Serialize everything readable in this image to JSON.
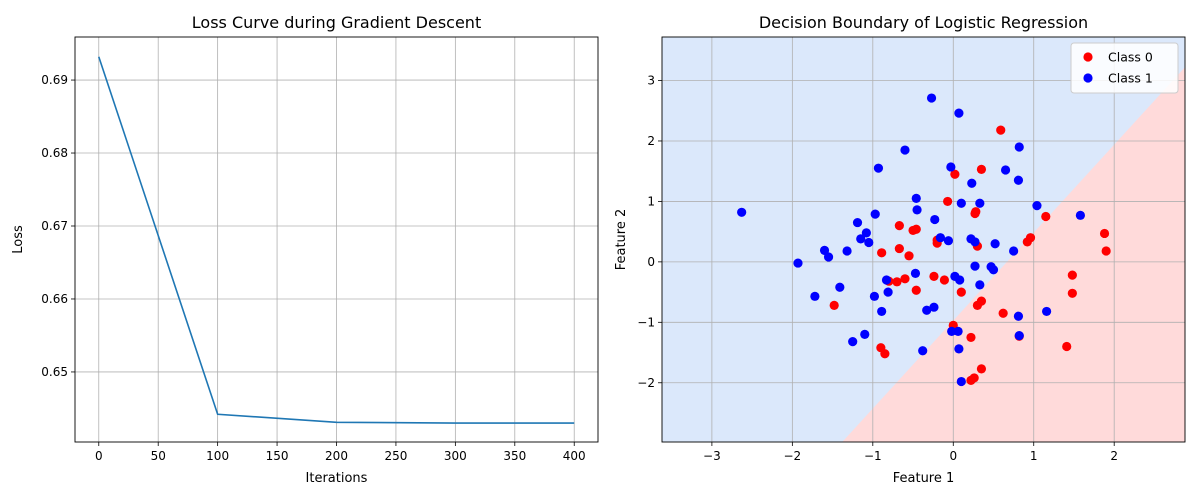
{
  "chart_data": [
    {
      "type": "line",
      "title": "Loss Curve during Gradient Descent",
      "xlabel": "Iterations",
      "ylabel": "Loss",
      "xlim": [
        -20,
        420
      ],
      "ylim": [
        0.6404,
        0.6959
      ],
      "xticks": [
        0,
        50,
        100,
        150,
        200,
        250,
        300,
        350,
        400
      ],
      "yticks": [
        0.65,
        0.66,
        0.67,
        0.68,
        0.69
      ],
      "grid": true,
      "color": "#1f77b4",
      "x": [
        0,
        100,
        200,
        300,
        400
      ],
      "y": [
        0.6932,
        0.6442,
        0.6431,
        0.643,
        0.643
      ]
    },
    {
      "type": "scatter",
      "title": "Decision Boundary of Logistic Regression",
      "xlabel": "Feature 1",
      "ylabel": "Feature 2",
      "xlim": [
        -3.62,
        2.88
      ],
      "ylim": [
        -2.98,
        3.72
      ],
      "xticks": [
        -3,
        -2,
        -1,
        0,
        1,
        2
      ],
      "yticks": [
        -2,
        -1,
        0,
        1,
        2,
        3
      ],
      "grid": true,
      "legend_position": "top-right",
      "boundary": {
        "points": [
          [
            -1.38,
            -2.98
          ],
          [
            2.88,
            3.22
          ]
        ],
        "region_class0_color": "#ffdada",
        "region_class1_color": "#dbe8fb"
      },
      "series": [
        {
          "name": "Class 0",
          "color": "#ff0000",
          "points": [
            [
              0.59,
              2.18
            ],
            [
              0.35,
              1.53
            ],
            [
              0.02,
              1.45
            ],
            [
              -0.07,
              1.0
            ],
            [
              0.27,
              0.8
            ],
            [
              0.28,
              0.83
            ],
            [
              1.15,
              0.75
            ],
            [
              1.88,
              0.47
            ],
            [
              1.9,
              0.18
            ],
            [
              0.96,
              0.4
            ],
            [
              0.92,
              0.33
            ],
            [
              -0.67,
              0.6
            ],
            [
              -0.5,
              0.52
            ],
            [
              -0.46,
              0.54
            ],
            [
              -0.67,
              0.22
            ],
            [
              -0.55,
              0.1
            ],
            [
              -0.89,
              0.15
            ],
            [
              -0.2,
              0.36
            ],
            [
              -0.2,
              0.31
            ],
            [
              0.3,
              0.26
            ],
            [
              -0.24,
              -0.24
            ],
            [
              -0.11,
              -0.3
            ],
            [
              -0.6,
              -0.28
            ],
            [
              -0.7,
              -0.33
            ],
            [
              -0.8,
              -0.32
            ],
            [
              -0.46,
              -0.47
            ],
            [
              0.1,
              -0.5
            ],
            [
              0.35,
              -0.65
            ],
            [
              0.3,
              -0.72
            ],
            [
              -1.48,
              -0.72
            ],
            [
              1.48,
              -0.22
            ],
            [
              1.48,
              -0.52
            ],
            [
              0.62,
              -0.85
            ],
            [
              0.82,
              -1.23
            ],
            [
              0.0,
              -1.05
            ],
            [
              0.22,
              -1.25
            ],
            [
              1.41,
              -1.4
            ],
            [
              -0.9,
              -1.42
            ],
            [
              -0.85,
              -1.52
            ],
            [
              0.35,
              -1.77
            ],
            [
              0.26,
              -1.92
            ],
            [
              0.22,
              -1.96
            ]
          ]
        },
        {
          "name": "Class 1",
          "color": "#0000ff",
          "points": [
            [
              -0.27,
              2.71
            ],
            [
              0.07,
              2.46
            ],
            [
              0.82,
              1.9
            ],
            [
              -0.6,
              1.85
            ],
            [
              -0.03,
              1.57
            ],
            [
              -0.93,
              1.55
            ],
            [
              0.65,
              1.52
            ],
            [
              0.23,
              1.3
            ],
            [
              0.81,
              1.35
            ],
            [
              -0.46,
              1.05
            ],
            [
              0.33,
              0.97
            ],
            [
              0.1,
              0.97
            ],
            [
              1.04,
              0.93
            ],
            [
              -0.45,
              0.86
            ],
            [
              -0.97,
              0.79
            ],
            [
              1.58,
              0.77
            ],
            [
              -0.23,
              0.7
            ],
            [
              -1.19,
              0.65
            ],
            [
              -1.08,
              0.48
            ],
            [
              -1.15,
              0.38
            ],
            [
              -1.05,
              0.32
            ],
            [
              -0.16,
              0.4
            ],
            [
              -0.06,
              0.35
            ],
            [
              0.22,
              0.38
            ],
            [
              0.27,
              0.33
            ],
            [
              0.52,
              0.3
            ],
            [
              0.75,
              0.18
            ],
            [
              -1.6,
              0.19
            ],
            [
              -1.55,
              0.08
            ],
            [
              -1.32,
              0.18
            ],
            [
              -2.63,
              0.82
            ],
            [
              -1.93,
              -0.02
            ],
            [
              0.27,
              -0.07
            ],
            [
              0.47,
              -0.08
            ],
            [
              0.5,
              -0.13
            ],
            [
              -0.47,
              -0.19
            ],
            [
              0.02,
              -0.24
            ],
            [
              0.08,
              -0.3
            ],
            [
              0.33,
              -0.38
            ],
            [
              -1.41,
              -0.42
            ],
            [
              -0.83,
              -0.3
            ],
            [
              -0.81,
              -0.5
            ],
            [
              -1.72,
              -0.57
            ],
            [
              -0.98,
              -0.57
            ],
            [
              -0.24,
              -0.75
            ],
            [
              -0.33,
              -0.8
            ],
            [
              -0.89,
              -0.82
            ],
            [
              1.16,
              -0.82
            ],
            [
              0.81,
              -0.9
            ],
            [
              -1.1,
              -1.2
            ],
            [
              -0.02,
              -1.15
            ],
            [
              0.06,
              -1.15
            ],
            [
              0.82,
              -1.22
            ],
            [
              -1.25,
              -1.32
            ],
            [
              0.07,
              -1.44
            ],
            [
              -0.38,
              -1.47
            ],
            [
              0.1,
              -1.98
            ]
          ]
        }
      ]
    }
  ]
}
